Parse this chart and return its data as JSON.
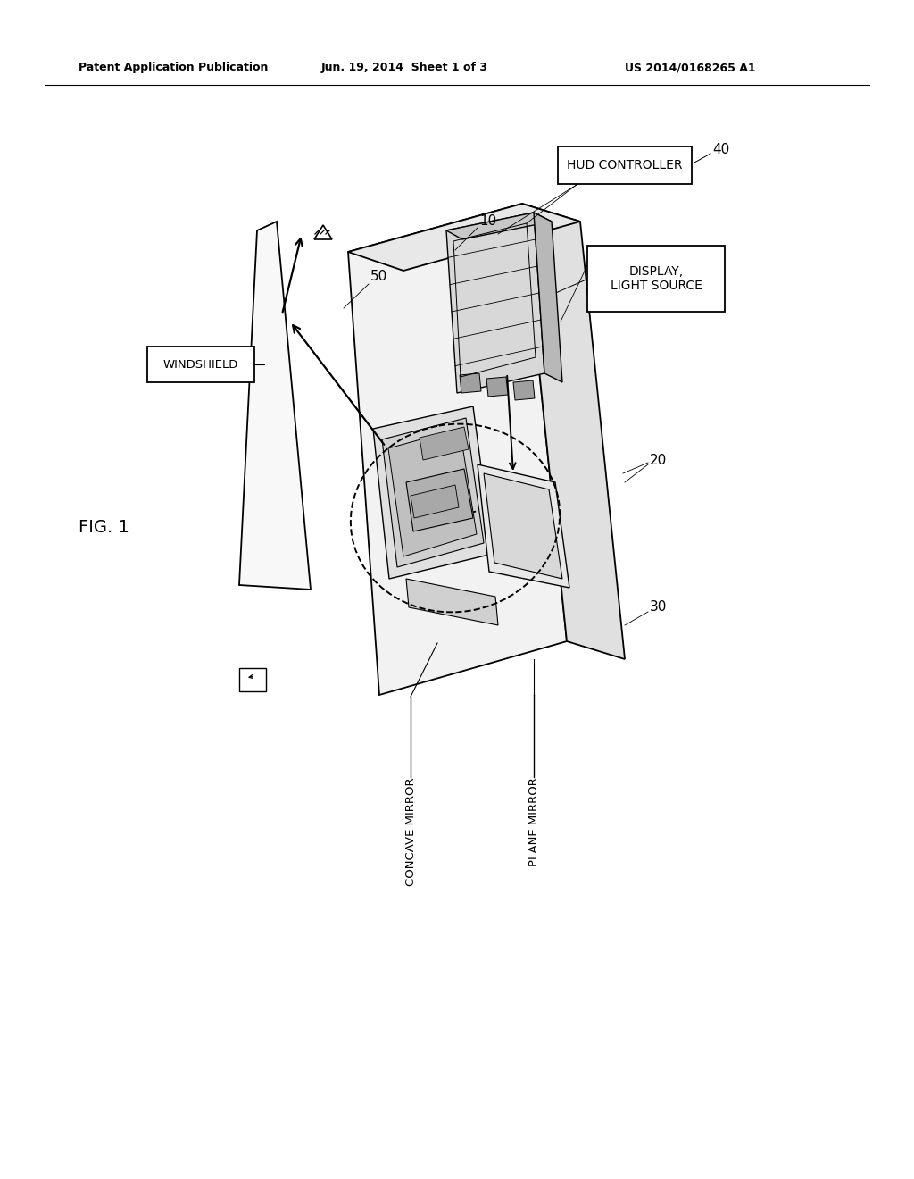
{
  "background_color": "#ffffff",
  "fig_width": 10.24,
  "fig_height": 13.2,
  "dpi": 100,
  "header_text1": "Patent Application Publication",
  "header_text2": "Jun. 19, 2014  Sheet 1 of 3",
  "header_text3": "US 2014/0168265 A1",
  "text_color": "#000000",
  "line_color": "#000000",
  "fig_label": "FIG. 1",
  "label_10": "10",
  "label_20": "20",
  "label_30": "30",
  "label_40": "40",
  "label_50": "50",
  "box_windshield": "WINDSHIELD",
  "box_hud": "HUD CONTROLLER",
  "box_display_line1": "DISPLAY,",
  "box_display_line2": "LIGHT SOURCE",
  "box_concave": "CONCAVE MIRROR",
  "box_plane": "PLANE MIRROR"
}
